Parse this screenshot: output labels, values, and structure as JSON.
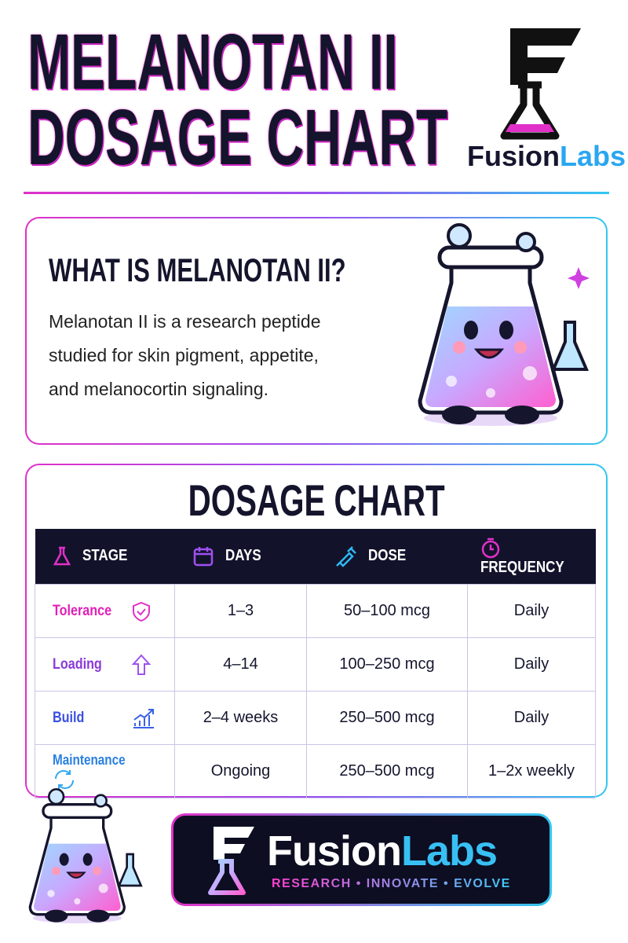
{
  "header": {
    "title_lines": [
      "MELANOTAN II",
      "DOSAGE CHART"
    ],
    "logo_name": "Fusion",
    "logo_suffix": "Labs"
  },
  "intro": {
    "heading": "WHAT IS MELANOTAN II?",
    "body_lines": [
      "Melanotan II is a research peptide",
      "studied for skin pigment, appetite,",
      "and melanocortin signaling."
    ]
  },
  "dosage": {
    "heading": "DOSAGE CHART",
    "table": {
      "columns": [
        "STAGE",
        "DAYS",
        "DOSE",
        "FREQUENCY"
      ],
      "rows": [
        [
          "Tolerance",
          "1–3",
          "50–100 mcg",
          "Daily"
        ],
        [
          "Loading",
          "4–14",
          "100–250 mcg",
          "Daily"
        ],
        [
          "Build",
          "2–4 weeks",
          "250–500 mcg",
          "Daily"
        ],
        [
          "Maintenance",
          "Ongoing",
          "250–500 mcg",
          "1–2x weekly"
        ]
      ]
    }
  },
  "footer": {
    "brand_name": "Fusion",
    "brand_suffix": "Labs",
    "tagline": "RESEARCH • INNOVATE • EVOLVE"
  }
}
